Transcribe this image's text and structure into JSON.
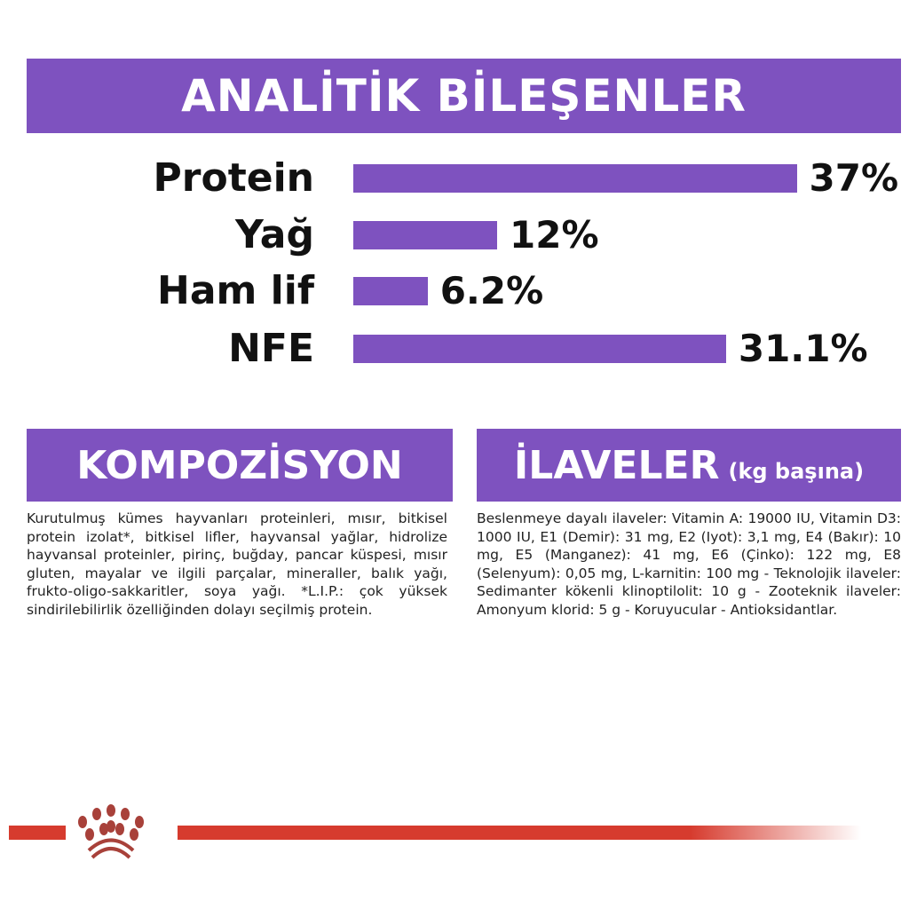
{
  "header": {
    "title": "ANALİTİK BİLEŞENLER"
  },
  "chart_data": {
    "type": "bar",
    "orientation": "horizontal",
    "title": "ANALİTİK BİLEŞENLER",
    "categories": [
      "Protein",
      "Yağ",
      "Ham lif",
      "NFE"
    ],
    "values": [
      37,
      12,
      6.2,
      31.1
    ],
    "value_labels": [
      "37%",
      "12%",
      "6.2%",
      "31.1%"
    ],
    "unit": "%",
    "bar_color": "#7e52bf",
    "grid": false
  },
  "composition": {
    "title": "KOMPOZİSYON",
    "text": "Kurutulmuş kümes hayvanları proteinleri, mısır, bitkisel protein izolat*, bitkisel lifler, hayvansal yağlar, hidrolize hayvansal proteinler, pirinç, buğday, pancar küspesi, mısır gluten, mayalar ve ilgili parçalar, mineraller, balık yağı, frukto-oligo-sakkaritler, soya yağı. *L.I.P.: çok yüksek sindirilebilirlik özelliğinden dolayı seçilmiş protein."
  },
  "additives": {
    "title": "İLAVELER",
    "subtitle": "(kg başına)",
    "text": "Beslenmeye dayalı ilaveler: Vitamin A: 19000 IU, Vitamin D3: 1000 IU, E1 (Demir): 31 mg, E2 (Iyot): 3,1 mg, E4 (Bakır): 10 mg, E5 (Manganez): 41 mg, E6 (Çinko): 122 mg, E8 (Selenyum): 0,05 mg, L-karnitin: 100 mg - Teknolojik ilaveler: Sedimanter kökenli klinoptilolit: 10 g - Zooteknik ilaveler: Amonyum klorid: 5 g - Koruyucular - Antioksidantlar."
  },
  "footer": {
    "logo": "crown-logo",
    "accent": "#d63b2e"
  }
}
